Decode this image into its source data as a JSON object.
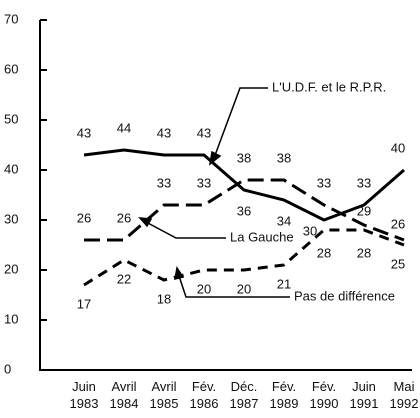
{
  "chart_data": {
    "type": "line",
    "categories": [
      "Juin 1983",
      "Avril 1984",
      "Avril 1985",
      "Fév. 1986",
      "Déc. 1987",
      "Fév. 1989",
      "Fév. 1990",
      "Juin 1991",
      "Mai 1992"
    ],
    "series": [
      {
        "name": "L'U.D.F. et le R.P.R.",
        "color": "#000000",
        "dash": "solid",
        "values": [
          43,
          44,
          43,
          43,
          36,
          34,
          30,
          33,
          40
        ]
      },
      {
        "name": "La Gauche",
        "color": "#000000",
        "dash": "long",
        "values": [
          26,
          26,
          33,
          33,
          38,
          38,
          33,
          29,
          26
        ]
      },
      {
        "name": "Pas de différence",
        "color": "#000000",
        "dash": "short",
        "values": [
          17,
          22,
          18,
          20,
          20,
          21,
          28,
          28,
          25
        ]
      }
    ],
    "ylim": [
      0,
      70
    ],
    "yticks": [
      0,
      10,
      20,
      30,
      40,
      50,
      60,
      70
    ],
    "grid": false
  }
}
